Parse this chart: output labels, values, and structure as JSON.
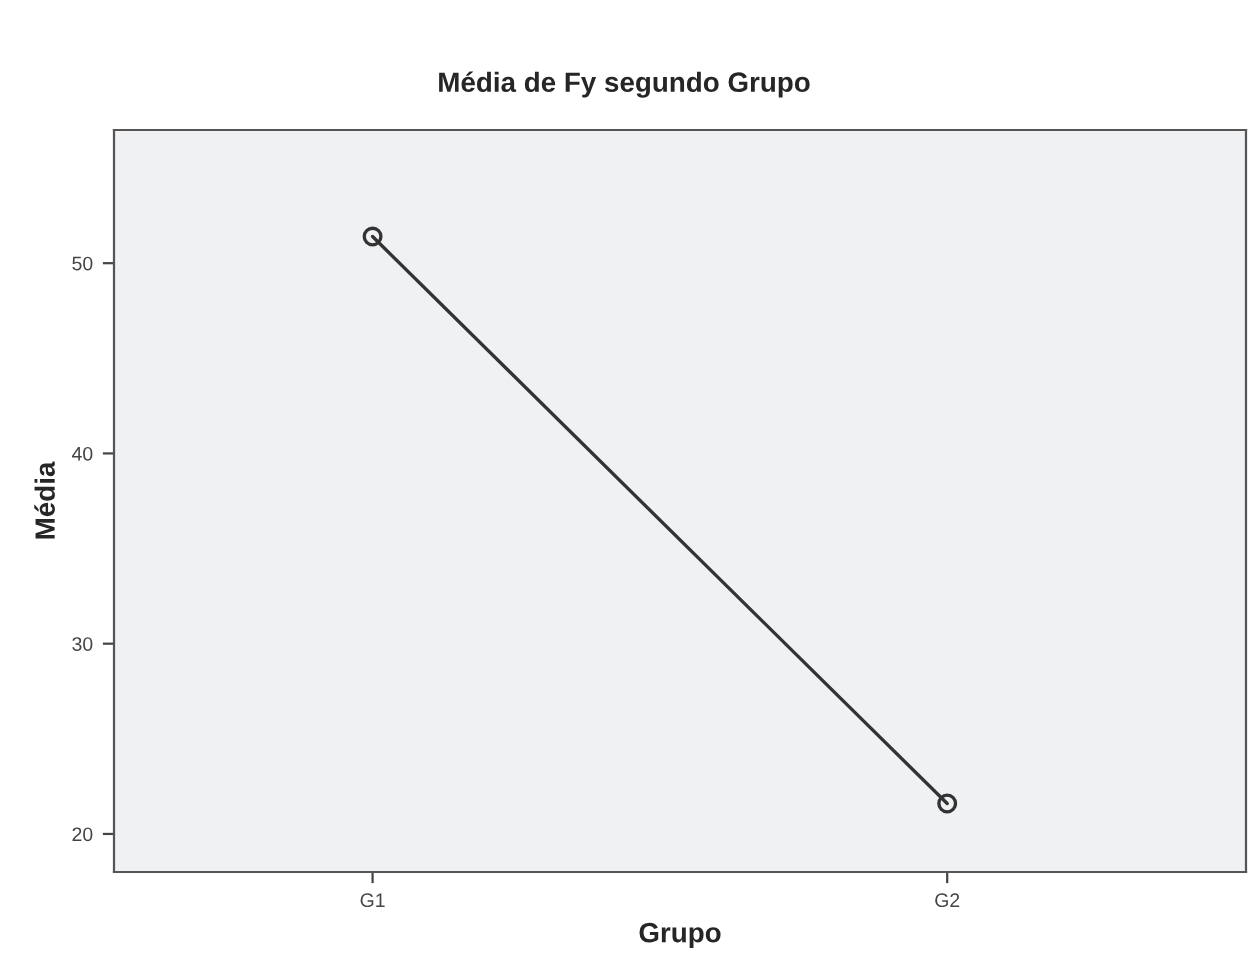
{
  "chart_data": {
    "type": "line",
    "title": "Média de Fy segundo Grupo",
    "xlabel": "Grupo",
    "ylabel": "Média",
    "categories": [
      "G1",
      "G2"
    ],
    "series": [
      {
        "color": "#333333",
        "values": [
          51.4,
          21.6
        ]
      }
    ],
    "ylim": [
      18,
      57
    ],
    "yticks": [
      20,
      30,
      40,
      50
    ],
    "grid": false,
    "legend": false,
    "marker": "circle",
    "line_style": "solid"
  }
}
